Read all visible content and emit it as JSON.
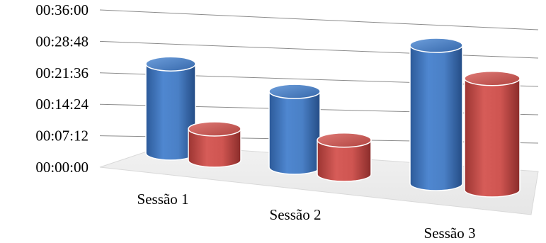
{
  "chart_data": {
    "type": "bar",
    "style": "3d-cylinder",
    "categories": [
      "Sessão 1",
      "Sessão 2",
      "Sessão 3"
    ],
    "series": [
      {
        "values": [
          "00:20:00",
          "00:17:00",
          "00:31:00"
        ],
        "seconds": [
          1200,
          1020,
          1860
        ],
        "color": "#3f73bd"
      },
      {
        "values": [
          "00:07:00",
          "00:07:40",
          "00:25:00"
        ],
        "seconds": [
          420,
          460,
          1500
        ],
        "color": "#c0504d"
      }
    ],
    "y_ticks": [
      "00:00:00",
      "00:07:12",
      "00:14:24",
      "00:21:36",
      "00:28:48",
      "00:36:00"
    ],
    "ylim_seconds": [
      0,
      2160
    ],
    "grid": true,
    "legend": "none",
    "title": "",
    "xlabel": "",
    "ylabel": ""
  }
}
